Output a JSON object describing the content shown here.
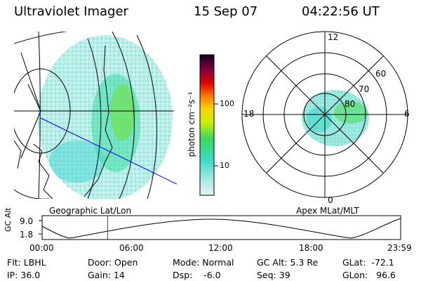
{
  "header": {
    "instrument": "Ultraviolet Imager",
    "date": "15 Sep 07",
    "time": "04:22:56 UT"
  },
  "geo_panel": {
    "label": "Geographic Lat/Lon"
  },
  "polar_panel": {
    "label": "Apex MLat/MLT",
    "mlt_labels": {
      "top": "12",
      "bottom": "0",
      "left": "18",
      "right": "6"
    },
    "lat_labels": [
      "60",
      "70",
      "80"
    ]
  },
  "colorbar": {
    "unit_label": "photon cm⁻²s⁻¹",
    "ticks": [
      "100",
      "10"
    ]
  },
  "altitude_plot": {
    "ylabel": "GC Alt",
    "yticks": [
      "9.0",
      "1.8"
    ],
    "xticks": [
      "00:00",
      "06:00",
      "12:00",
      "18:00",
      "23:59"
    ],
    "current_time_fraction": 0.183
  },
  "info": {
    "flt": "Flt: LBHL",
    "ip": "IP: 36.0",
    "door": "Door: Open",
    "gain": "Gain: 14",
    "mode": "Mode: Normal",
    "dsp": "Dsp:    -6.0",
    "gcalt": "GC Alt: 5.3 Re",
    "seq": "Seq: 39",
    "glat": "GLat:  -72.1",
    "glon": "GLon:   96.6"
  },
  "colors": {
    "cyan": "#40e0d0",
    "green": "#50e060",
    "lightblue": "#c8ecec",
    "blue_line": "#0000ff",
    "red_marker": "#ff0000"
  }
}
